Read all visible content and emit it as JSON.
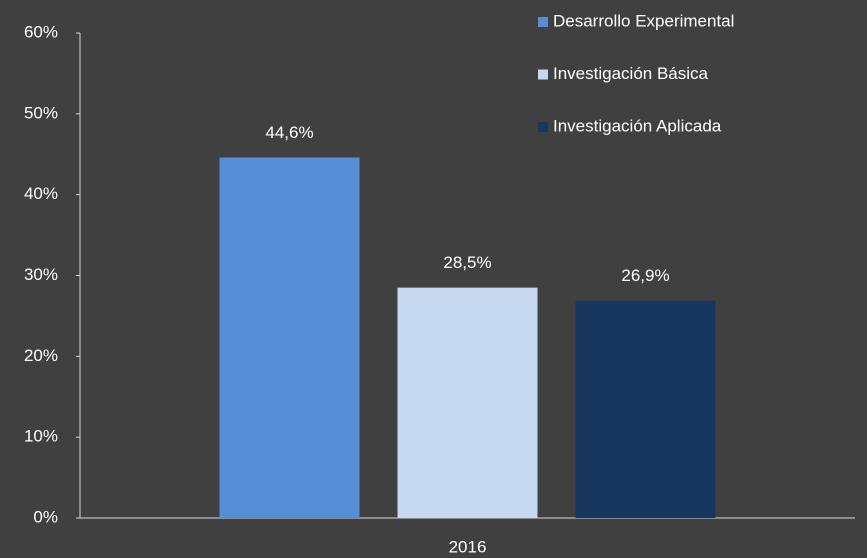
{
  "chart_data": {
    "type": "bar",
    "categories": [
      "2016"
    ],
    "series": [
      {
        "name": "Desarrollo Experimental",
        "color": "#558ed5",
        "values": [
          44.6
        ],
        "value_labels": [
          "44,6%"
        ]
      },
      {
        "name": "Investigación Básica",
        "color": "#c6d9f1",
        "values": [
          28.5
        ],
        "value_labels": [
          "28,5%"
        ]
      },
      {
        "name": "Investigación Aplicada",
        "color": "#17375e",
        "values": [
          26.9
        ],
        "value_labels": [
          "26,9%"
        ]
      }
    ],
    "ylim": [
      0,
      60
    ],
    "yticks": [
      {
        "value": 0,
        "label": "0%"
      },
      {
        "value": 10,
        "label": "10%"
      },
      {
        "value": 20,
        "label": "20%"
      },
      {
        "value": 30,
        "label": "30%"
      },
      {
        "value": 40,
        "label": "40%"
      },
      {
        "value": 50,
        "label": "50%"
      },
      {
        "value": 60,
        "label": "60%"
      }
    ],
    "grid": false,
    "legend": "top-right"
  }
}
